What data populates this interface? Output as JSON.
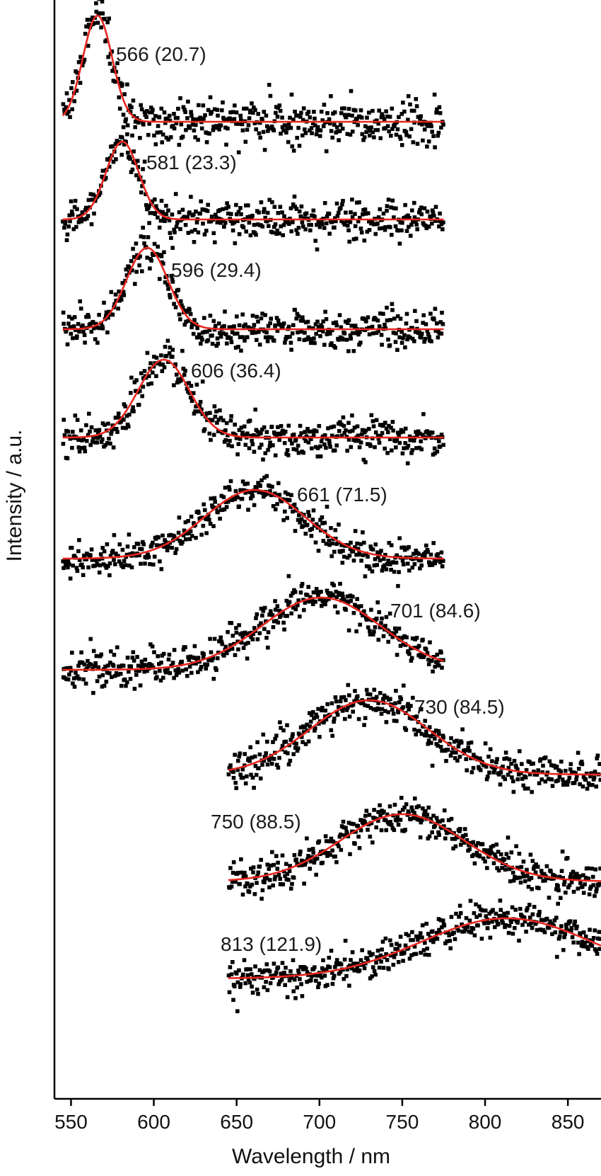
{
  "chart_data": {
    "type": "scatter",
    "xlabel": "Wavelength / nm",
    "ylabel": "Intensity / a.u.",
    "xlim": [
      540,
      870
    ],
    "x_ticks": [
      "550",
      "600",
      "650",
      "700",
      "750",
      "800",
      "850"
    ],
    "y_ticks": [],
    "marker_color": "#000000",
    "fit_color": "#e8261f",
    "axis_color": "#000000",
    "series": [
      {
        "label": "566 (20.7)",
        "peak": 566,
        "fwhm": 20.7,
        "x_range": [
          545,
          775
        ]
      },
      {
        "label": "581 (23.3)",
        "peak": 581,
        "fwhm": 23.3,
        "x_range": [
          545,
          775
        ]
      },
      {
        "label": "596 (29.4)",
        "peak": 596,
        "fwhm": 29.4,
        "x_range": [
          545,
          775
        ]
      },
      {
        "label": "606 (36.4)",
        "peak": 606,
        "fwhm": 36.4,
        "x_range": [
          545,
          775
        ]
      },
      {
        "label": "661 (71.5)",
        "peak": 661,
        "fwhm": 71.5,
        "x_range": [
          545,
          775
        ]
      },
      {
        "label": "701 (84.6)",
        "peak": 701,
        "fwhm": 84.6,
        "x_range": [
          545,
          775
        ]
      },
      {
        "label": "730 (84.5)",
        "peak": 730,
        "fwhm": 84.5,
        "x_range": [
          645,
          870
        ]
      },
      {
        "label": "750 (88.5)",
        "peak": 750,
        "fwhm": 88.5,
        "x_range": [
          645,
          870
        ]
      },
      {
        "label": "813 (121.9)",
        "peak": 813,
        "fwhm": 121.9,
        "x_range": [
          645,
          870
        ]
      }
    ]
  }
}
